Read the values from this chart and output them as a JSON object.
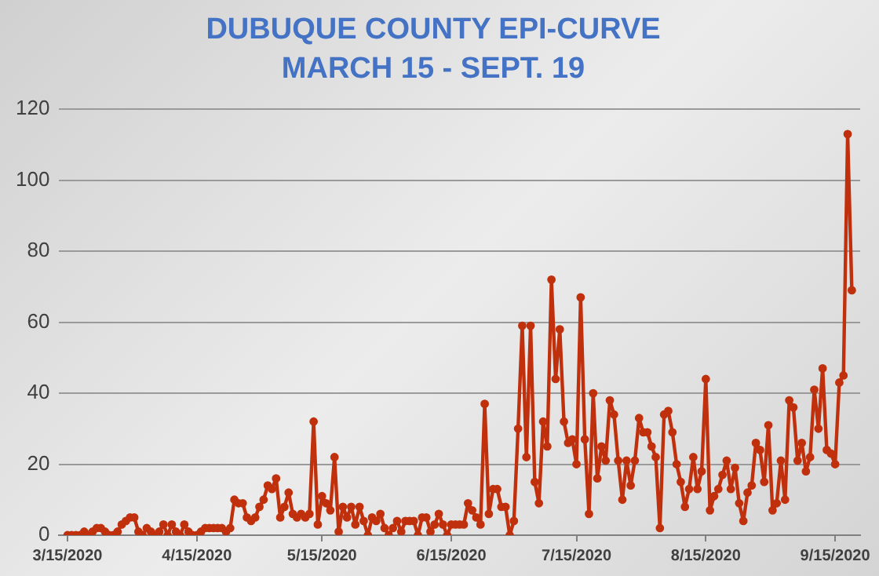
{
  "chart_data": {
    "type": "line",
    "title": "DUBUQUE COUNTY EPI-CURVE",
    "subtitle": "MARCH 15 - SEPT. 19",
    "x": [
      "2020-03-15",
      "2020-03-16",
      "2020-03-17",
      "2020-03-18",
      "2020-03-19",
      "2020-03-20",
      "2020-03-21",
      "2020-03-22",
      "2020-03-23",
      "2020-03-24",
      "2020-03-25",
      "2020-03-26",
      "2020-03-27",
      "2020-03-28",
      "2020-03-29",
      "2020-03-30",
      "2020-03-31",
      "2020-04-01",
      "2020-04-02",
      "2020-04-03",
      "2020-04-04",
      "2020-04-05",
      "2020-04-06",
      "2020-04-07",
      "2020-04-08",
      "2020-04-09",
      "2020-04-10",
      "2020-04-11",
      "2020-04-12",
      "2020-04-13",
      "2020-04-14",
      "2020-04-15",
      "2020-04-16",
      "2020-04-17",
      "2020-04-18",
      "2020-04-19",
      "2020-04-20",
      "2020-04-21",
      "2020-04-22",
      "2020-04-23",
      "2020-04-24",
      "2020-04-25",
      "2020-04-26",
      "2020-04-27",
      "2020-04-28",
      "2020-04-29",
      "2020-04-30",
      "2020-05-01",
      "2020-05-02",
      "2020-05-03",
      "2020-05-04",
      "2020-05-05",
      "2020-05-06",
      "2020-05-07",
      "2020-05-08",
      "2020-05-09",
      "2020-05-10",
      "2020-05-11",
      "2020-05-12",
      "2020-05-13",
      "2020-05-14",
      "2020-05-15",
      "2020-05-16",
      "2020-05-17",
      "2020-05-18",
      "2020-05-19",
      "2020-05-20",
      "2020-05-21",
      "2020-05-22",
      "2020-05-23",
      "2020-05-24",
      "2020-05-25",
      "2020-05-26",
      "2020-05-27",
      "2020-05-28",
      "2020-05-29",
      "2020-05-30",
      "2020-05-31",
      "2020-06-01",
      "2020-06-02",
      "2020-06-03",
      "2020-06-04",
      "2020-06-05",
      "2020-06-06",
      "2020-06-07",
      "2020-06-08",
      "2020-06-09",
      "2020-06-10",
      "2020-06-11",
      "2020-06-12",
      "2020-06-13",
      "2020-06-14",
      "2020-06-15",
      "2020-06-16",
      "2020-06-17",
      "2020-06-18",
      "2020-06-19",
      "2020-06-20",
      "2020-06-21",
      "2020-06-22",
      "2020-06-23",
      "2020-06-24",
      "2020-06-25",
      "2020-06-26",
      "2020-06-27",
      "2020-06-28",
      "2020-06-29",
      "2020-06-30",
      "2020-07-01",
      "2020-07-02",
      "2020-07-03",
      "2020-07-04",
      "2020-07-05",
      "2020-07-06",
      "2020-07-07",
      "2020-07-08",
      "2020-07-09",
      "2020-07-10",
      "2020-07-11",
      "2020-07-12",
      "2020-07-13",
      "2020-07-14",
      "2020-07-15",
      "2020-07-16",
      "2020-07-17",
      "2020-07-18",
      "2020-07-19",
      "2020-07-20",
      "2020-07-21",
      "2020-07-22",
      "2020-07-23",
      "2020-07-24",
      "2020-07-25",
      "2020-07-26",
      "2020-07-27",
      "2020-07-28",
      "2020-07-29",
      "2020-07-30",
      "2020-07-31",
      "2020-08-01",
      "2020-08-02",
      "2020-08-03",
      "2020-08-04",
      "2020-08-05",
      "2020-08-06",
      "2020-08-07",
      "2020-08-08",
      "2020-08-09",
      "2020-08-10",
      "2020-08-11",
      "2020-08-12",
      "2020-08-13",
      "2020-08-14",
      "2020-08-15",
      "2020-08-16",
      "2020-08-17",
      "2020-08-18",
      "2020-08-19",
      "2020-08-20",
      "2020-08-21",
      "2020-08-22",
      "2020-08-23",
      "2020-08-24",
      "2020-08-25",
      "2020-08-26",
      "2020-08-27",
      "2020-08-28",
      "2020-08-29",
      "2020-08-30",
      "2020-08-31",
      "2020-09-01",
      "2020-09-02",
      "2020-09-03",
      "2020-09-04",
      "2020-09-05",
      "2020-09-06",
      "2020-09-07",
      "2020-09-08",
      "2020-09-09",
      "2020-09-10",
      "2020-09-11",
      "2020-09-12",
      "2020-09-13",
      "2020-09-14",
      "2020-09-15",
      "2020-09-16",
      "2020-09-17",
      "2020-09-18",
      "2020-09-19"
    ],
    "series": [
      {
        "color": "#c0300c",
        "values": [
          0,
          0,
          0,
          0,
          1,
          0,
          1,
          2,
          2,
          1,
          0,
          0,
          1,
          3,
          4,
          5,
          5,
          1,
          0,
          2,
          1,
          0,
          1,
          3,
          0,
          3,
          1,
          0,
          3,
          1,
          0,
          0,
          1,
          2,
          2,
          2,
          2,
          2,
          1,
          2,
          10,
          9,
          9,
          5,
          4,
          5,
          8,
          10,
          14,
          13,
          16,
          5,
          8,
          12,
          6,
          5,
          6,
          5,
          6,
          32,
          3,
          11,
          9,
          7,
          22,
          1,
          8,
          5,
          8,
          3,
          8,
          4,
          0,
          5,
          4,
          6,
          2,
          0,
          2,
          4,
          1,
          4,
          4,
          4,
          0,
          5,
          5,
          1,
          3,
          6,
          3,
          0,
          3,
          3,
          3,
          3,
          9,
          7,
          5,
          3,
          37,
          6,
          13,
          13,
          8,
          8,
          0,
          4,
          30,
          59,
          22,
          59,
          15,
          9,
          32,
          25,
          72,
          44,
          58,
          32,
          26,
          27,
          20,
          67,
          27,
          6,
          40,
          16,
          25,
          21,
          38,
          34,
          21,
          10,
          21,
          14,
          21,
          33,
          29,
          29,
          25,
          22,
          2,
          34,
          35,
          29,
          20,
          15,
          8,
          13,
          22,
          13,
          18,
          44,
          7,
          11,
          13,
          17,
          21,
          13,
          19,
          9,
          4,
          12,
          14,
          26,
          24,
          15,
          31,
          7,
          9,
          21,
          10,
          38,
          36,
          21,
          26,
          18,
          22,
          41,
          30,
          47,
          24,
          23,
          20,
          43,
          45,
          113,
          69
        ]
      }
    ],
    "xlim": [
      "2020-03-13",
      "2020-09-21"
    ],
    "xticks": [
      {
        "value": "2020-03-15",
        "label": "3/15/2020"
      },
      {
        "value": "2020-04-15",
        "label": "4/15/2020"
      },
      {
        "value": "2020-05-15",
        "label": "5/15/2020"
      },
      {
        "value": "2020-06-15",
        "label": "6/15/2020"
      },
      {
        "value": "2020-07-15",
        "label": "7/15/2020"
      },
      {
        "value": "2020-08-15",
        "label": "8/15/2020"
      },
      {
        "value": "2020-09-15",
        "label": "9/15/2020"
      }
    ],
    "ylim": [
      0,
      120
    ],
    "yticks": [
      0,
      20,
      40,
      60,
      80,
      100,
      120
    ],
    "grid": "y",
    "legend": false,
    "marker": "circle",
    "line_style": "solid"
  }
}
